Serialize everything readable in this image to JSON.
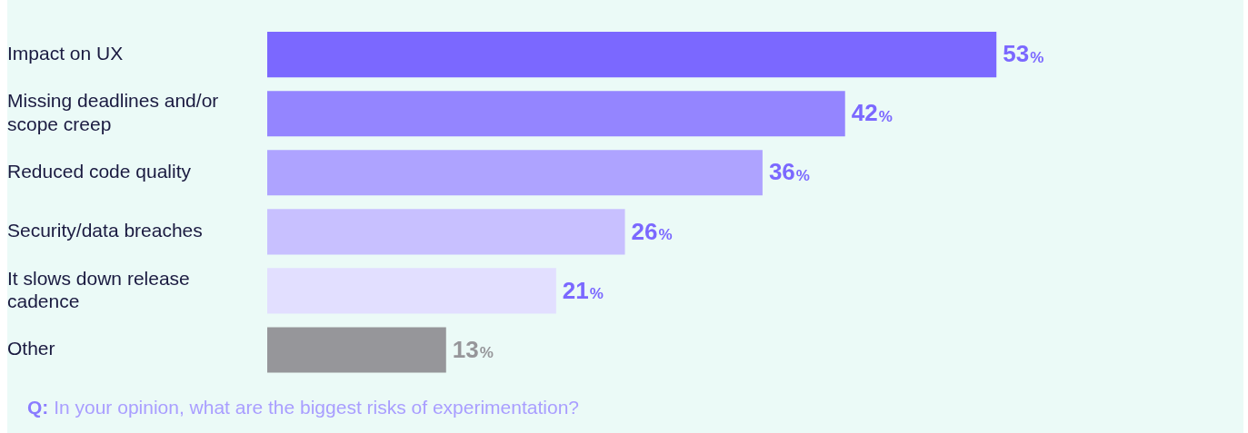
{
  "chart_data": {
    "type": "bar",
    "orientation": "horizontal",
    "categories": [
      "Impact on UX",
      "Missing deadlines and/or scope creep",
      "Reduced code quality",
      "Security/data breaches",
      "It slows down release cadence",
      "Other"
    ],
    "values": [
      53,
      42,
      36,
      26,
      21,
      13
    ],
    "colors": [
      "#7b68ff",
      "#9485ff",
      "#aea3ff",
      "#c8c0ff",
      "#e2dfff",
      "#96969a"
    ],
    "value_labels": [
      "53%",
      "42%",
      "36%",
      "26%",
      "21%",
      "13%"
    ],
    "annotations": [
      "Q: In your opinion, what are the biggest risks of experimentation?"
    ]
  }
}
